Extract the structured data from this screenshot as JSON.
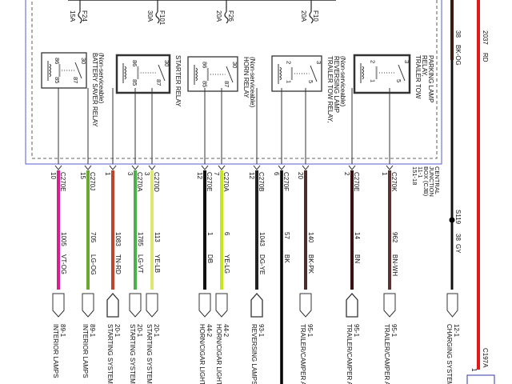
{
  "fuses": [
    {
      "name": "F24",
      "rating": "15A"
    },
    {
      "name": "F101",
      "rating": "30A"
    },
    {
      "name": "F26",
      "rating": "20A"
    },
    {
      "name": "F10",
      "rating": "20A"
    }
  ],
  "relays": [
    {
      "title": "BATTERY SAVER RELAY",
      "note": "(Non-serviceable)",
      "pins": [
        "86",
        "85",
        "30",
        "87"
      ]
    },
    {
      "title": "STARTER RELAY",
      "note": "",
      "pins": [
        "86",
        "85",
        "30",
        "87"
      ]
    },
    {
      "title": "HORN RELAY",
      "note": "(Non-serviceable)",
      "pins": [
        "86",
        "85",
        "30",
        "87"
      ]
    },
    {
      "title": "TRAILER TOW RELAY,",
      "title2": "REVERSING LAMP",
      "note": "(Non-serviceable)",
      "pins": [
        "2",
        "1",
        "3",
        "5"
      ]
    },
    {
      "title": "TRAILER TOW",
      "title2": "RELAY,",
      "title3": "PARKING LAMP",
      "note": "",
      "pins": [
        "2",
        "1",
        "3",
        "5"
      ]
    }
  ],
  "cjb": {
    "line1": "CENTRAL",
    "line2": "JUNCTION",
    "line3": "BOX (CJB)",
    "line4": "11-1",
    "line5": "151-18"
  },
  "wires": [
    {
      "connector": "C270E",
      "pin": "10",
      "circuit": "1005",
      "color": "VT-OG",
      "hex": "#d8208c",
      "dest_code": "89-1",
      "dest": "INTERIOR LAMPS",
      "shape": "down"
    },
    {
      "connector": "C270J",
      "pin": "15",
      "circuit": "705",
      "color": "LG-OG",
      "hex": "#6aa832",
      "dest_code": "89-1",
      "dest": "INTERIOR LAMPS",
      "shape": "down"
    },
    {
      "connector": "",
      "pin": "1",
      "circuit": "1083",
      "color": "TN-RD",
      "hex": "#c0442a",
      "dest_code": "20-1",
      "dest": "STARTING SYSTEM",
      "shape": "up"
    },
    {
      "connector": "C270A",
      "pin": "3",
      "circuit": "1785",
      "color": "LG-VT",
      "hex": "#4cb04a",
      "dest_code": "20-1",
      "dest": "STARTING SYSTEM",
      "shape": "down"
    },
    {
      "connector": "C270D",
      "pin": "3",
      "circuit": "113",
      "color": "YE-LB",
      "hex": "#dce873",
      "dest_code": "20-1",
      "dest": "STARTING SYSTEM",
      "shape": "down"
    },
    {
      "connector": "C270E",
      "pin": "12",
      "circuit": "1",
      "color": "DB",
      "hex": "#111111",
      "dest_code": "44-2",
      "dest": "HORN/CIGAR LIGHT",
      "shape": "down"
    },
    {
      "connector": "C270A",
      "pin": "7",
      "circuit": "6",
      "color": "YE-LG",
      "hex": "#c6e61e",
      "dest_code": "44-2",
      "dest": "HORN/CIGAR LIGHT",
      "shape": "down"
    },
    {
      "connector": "C270B",
      "pin": "12",
      "circuit": "1043",
      "color": "DG-YE",
      "hex": "#222222",
      "dest_code": "93-1",
      "dest": "REVERSING LAMPS",
      "shape": "up"
    },
    {
      "connector": "C270F",
      "pin": "6",
      "circuit": "57",
      "color": "BK",
      "hex": "#000000",
      "dest_code": "",
      "dest": "",
      "shape": "none"
    },
    {
      "connector": "",
      "pin": "20",
      "circuit": "140",
      "color": "BK-PK",
      "hex": "#4a2c2c",
      "dest_code": "95-1",
      "dest": "TRAILER/CAMPER A",
      "shape": "down"
    },
    {
      "connector": "C270E",
      "pin": "2",
      "circuit": "14",
      "color": "BN",
      "hex": "#3a0f10",
      "dest_code": "95-1",
      "dest": "TRAILER/CAMPER A",
      "shape": "up"
    },
    {
      "connector": "C270K",
      "pin": "1",
      "circuit": "962",
      "color": "BN-WH",
      "hex": "#5a3232",
      "dest_code": "95-1",
      "dest": "TRAILER/CAMPER A",
      "shape": "down"
    }
  ],
  "charging": {
    "top_circuit": "38",
    "top_color": "BK-OG",
    "top_hex": "#3b1a10",
    "splice": "S119",
    "circuit": "38",
    "color": "GY",
    "hex": "#111111",
    "dest_code": "12-1",
    "dest": "CHARGING SYSTEM"
  },
  "power": {
    "circuit": "2037",
    "color": "RD",
    "hex": "#e01818",
    "connector": "C197A",
    "pin": "1"
  }
}
